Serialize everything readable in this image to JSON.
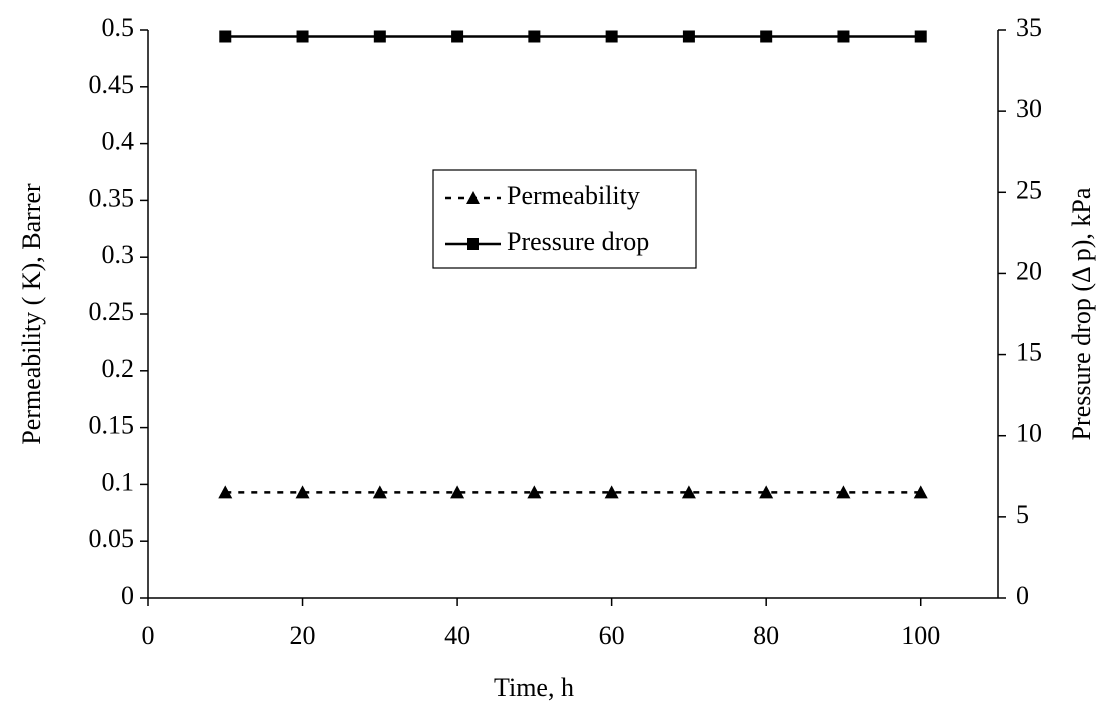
{
  "chart_data": {
    "type": "line",
    "x_label": "Time, h",
    "y_label": "Permeability ( K), Barrer",
    "y2_label": "Pressure drop (Δ p), kPa",
    "x": [
      10,
      20,
      30,
      40,
      50,
      60,
      70,
      80,
      90,
      100
    ],
    "series": [
      {
        "name": "Permeability",
        "color": "#000000",
        "line_style": "dotted",
        "marker": "triangle",
        "values": [
          0.093,
          0.093,
          0.093,
          0.093,
          0.093,
          0.093,
          0.093,
          0.093,
          0.093,
          0.093
        ]
      },
      {
        "name": "Pressure drop",
        "color": "#000000",
        "line_style": "solid",
        "marker": "square",
        "axis": "y2",
        "values": [
          34.6,
          34.6,
          34.6,
          34.6,
          34.6,
          34.6,
          34.6,
          34.6,
          34.6,
          34.6
        ]
      }
    ],
    "xlim": [
      0,
      110
    ],
    "xticks": [
      0,
      20,
      40,
      60,
      80,
      100
    ],
    "ylim": [
      0,
      0.5
    ],
    "yticks": [
      0,
      0.05,
      0.1,
      0.15,
      0.2,
      0.25,
      0.3,
      0.35,
      0.4,
      0.45,
      0.5
    ],
    "y2lim": [
      0,
      35
    ],
    "y2ticks": [
      0,
      5,
      10,
      15,
      20,
      25,
      30,
      35
    ],
    "grid": false,
    "legend": "center"
  }
}
